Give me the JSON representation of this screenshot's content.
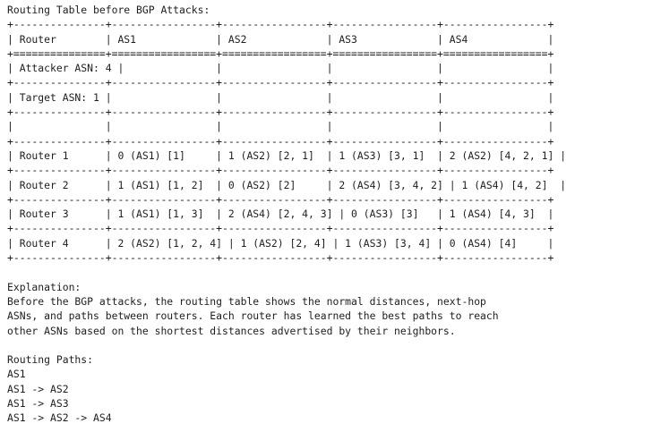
{
  "terminal": {
    "lines": [
      "Routing Table before BGP Attacks:",
      "+---------------+-----------------+-----------------+-----------------+-----------------+",
      "| Router        | AS1             | AS2             | AS3             | AS4             |",
      "+===============+=================+=================+=================+=================+",
      "| Attacker ASN: 4 |               |                 |                 |                 |",
      "+---------------+-----------------+-----------------+-----------------+-----------------+",
      "| Target ASN: 1 |                 |                 |                 |                 |",
      "+---------------+-----------------+-----------------+-----------------+-----------------+",
      "|               |                 |                 |                 |                 |",
      "+---------------+-----------------+-----------------+-----------------+-----------------+",
      "| Router 1      | 0 (AS1) [1]     | 1 (AS2) [2, 1]  | 1 (AS3) [3, 1]  | 2 (AS2) [4, 2, 1] |",
      "+---------------+-----------------+-----------------+-----------------+-----------------+",
      "| Router 2      | 1 (AS1) [1, 2]  | 0 (AS2) [2]     | 2 (AS4) [3, 4, 2] | 1 (AS4) [4, 2]  |",
      "+---------------+-----------------+-----------------+-----------------+-----------------+",
      "| Router 3      | 1 (AS1) [1, 3]  | 2 (AS4) [2, 4, 3] | 0 (AS3) [3]   | 1 (AS4) [4, 3]  |",
      "+---------------+-----------------+-----------------+-----------------+-----------------+",
      "| Router 4      | 2 (AS2) [1, 2, 4] | 1 (AS2) [2, 4] | 1 (AS3) [3, 4] | 0 (AS4) [4]     |",
      "+---------------+-----------------+-----------------+-----------------+-----------------+",
      "",
      "Explanation:",
      "Before the BGP attacks, the routing table shows the normal distances, next-hop",
      "ASNs, and paths between routers. Each router has learned the best paths to reach",
      "other ASNs based on the shortest distances advertised by their neighbors.",
      "",
      "Routing Paths:",
      "AS1",
      "AS1 -> AS2",
      "AS1 -> AS3",
      "AS1 -> AS2 -> AS4"
    ]
  }
}
